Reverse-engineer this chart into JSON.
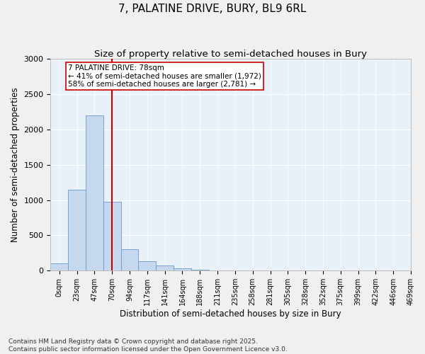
{
  "title": "7, PALATINE DRIVE, BURY, BL9 6RL",
  "subtitle": "Size of property relative to semi-detached houses in Bury",
  "xlabel": "Distribution of semi-detached houses by size in Bury",
  "ylabel": "Number of semi-detached properties",
  "bin_labels": [
    "0sqm",
    "23sqm",
    "47sqm",
    "70sqm",
    "94sqm",
    "117sqm",
    "141sqm",
    "164sqm",
    "188sqm",
    "211sqm",
    "235sqm",
    "258sqm",
    "281sqm",
    "305sqm",
    "328sqm",
    "352sqm",
    "375sqm",
    "399sqm",
    "422sqm",
    "446sqm",
    "469sqm"
  ],
  "bar_values": [
    100,
    1150,
    2200,
    980,
    300,
    130,
    70,
    30,
    10,
    5,
    0,
    0,
    0,
    0,
    0,
    0,
    0,
    0,
    0,
    0
  ],
  "bar_color": "#c5d8ee",
  "bar_edge_color": "#6699cc",
  "ylim": [
    0,
    3000
  ],
  "yticks": [
    0,
    500,
    1000,
    1500,
    2000,
    2500,
    3000
  ],
  "red_line_x": 3,
  "red_line_color": "#cc0000",
  "annotation_title": "7 PALATINE DRIVE: 78sqm",
  "annotation_line1": "← 41% of semi-detached houses are smaller (1,972)",
  "annotation_line2": "58% of semi-detached houses are larger (2,781) →",
  "footer1": "Contains HM Land Registry data © Crown copyright and database right 2025.",
  "footer2": "Contains public sector information licensed under the Open Government Licence v3.0.",
  "background_color": "#e8f0f8",
  "grid_color": "#ffffff",
  "fig_background": "#f0f0f0",
  "title_fontsize": 11,
  "subtitle_fontsize": 9.5,
  "axis_label_fontsize": 8.5,
  "tick_fontsize": 7,
  "annotation_fontsize": 7.5,
  "footer_fontsize": 6.5
}
